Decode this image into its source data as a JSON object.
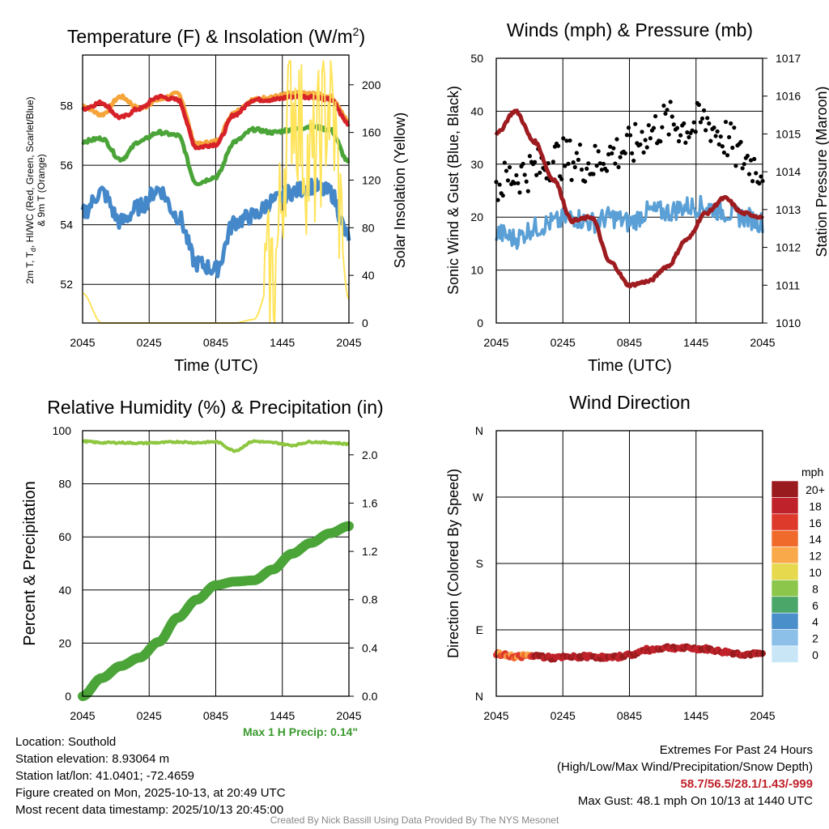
{
  "chart_data": [
    {
      "type": "line",
      "title": "Temperature (F) & Insolation (W/m2)",
      "title_main": "Temperature (F) & Insolation (W/m",
      "title_sup": "2",
      "title_end": ")",
      "ylabel_lines": [
        "2m T, T",
        "d",
        ", HI/WC (Red, Green, Scarlet/Blue)",
        "& 9m T (Orange)"
      ],
      "y2label": "Solar Insolation (Yellow)",
      "xlabel": "Time (UTC)",
      "xticks": [
        "2045",
        "0245",
        "0845",
        "1445",
        "2045"
      ],
      "yticks": [
        52,
        54,
        56,
        58
      ],
      "ylim": [
        50.7,
        59.7
      ],
      "y2ticks": [
        0,
        40,
        80,
        120,
        160,
        200
      ],
      "y2lim": [
        0,
        225
      ],
      "series": [
        {
          "name": "9m T",
          "color": "#f5a53a",
          "values": [
            58.0,
            57.7,
            58.3,
            57.9,
            58.2,
            58.4,
            56.7,
            56.8,
            57.8,
            58.2,
            58.3,
            58.4,
            58.4,
            58.3,
            57.5
          ]
        },
        {
          "name": "2m T",
          "color": "#d62228",
          "values": [
            57.9,
            58.1,
            57.6,
            57.9,
            58.3,
            58.2,
            56.6,
            56.7,
            57.7,
            58.2,
            58.2,
            58.3,
            58.3,
            58.2,
            57.4
          ]
        },
        {
          "name": "Td",
          "color": "#4aa438",
          "values": [
            56.8,
            56.9,
            56.2,
            56.8,
            57.1,
            57.0,
            55.4,
            55.6,
            56.8,
            57.2,
            57.1,
            57.2,
            57.3,
            57.2,
            56.1
          ]
        },
        {
          "name": "HI/WC",
          "color": "#4488c9",
          "values": [
            54.4,
            55.1,
            54.1,
            54.6,
            55.2,
            54.3,
            52.7,
            52.5,
            54.1,
            54.3,
            54.8,
            55.1,
            55.3,
            55.1,
            53.6
          ]
        },
        {
          "name": "Solar Insolation",
          "axis": "y2",
          "color": "#ffe45c",
          "values": [
            25,
            0,
            0,
            0,
            0,
            0,
            0,
            0,
            0,
            3,
            40,
            190,
            130,
            185,
            20
          ]
        }
      ]
    },
    {
      "type": "line",
      "title": "Winds (mph) & Pressure (mb)",
      "ylabel": "Sonic Wind & Gust (Blue, Black)",
      "y2label": "Station Pressure (Maroon)",
      "xlabel": "Time (UTC)",
      "xticks": [
        "2045",
        "0245",
        "0845",
        "1445",
        "2045"
      ],
      "yticks": [
        0,
        10,
        20,
        30,
        40,
        50
      ],
      "ylim": [
        0,
        50
      ],
      "y2ticks": [
        1010,
        1011,
        1012,
        1013,
        1014,
        1015,
        1016,
        1017
      ],
      "y2lim": [
        1010,
        1017
      ],
      "series": [
        {
          "name": "Sonic Wind",
          "color": "#5aa0d6",
          "values": [
            17,
            16,
            18,
            19,
            20,
            19,
            20,
            19,
            21,
            21,
            22,
            22,
            21,
            20,
            19
          ]
        },
        {
          "name": "Gust",
          "color": "#000000",
          "values": [
            26,
            28,
            29,
            31,
            31,
            30,
            32,
            33,
            36,
            38,
            37,
            38,
            35,
            31,
            29
          ]
        },
        {
          "name": "Station Pressure",
          "axis": "y2",
          "color": "#9e1b1f",
          "values": [
            1015.0,
            1015.6,
            1014.8,
            1013.8,
            1012.7,
            1012.8,
            1011.6,
            1011.0,
            1011.1,
            1011.5,
            1012.2,
            1012.9,
            1013.3,
            1012.9,
            1012.8
          ]
        }
      ]
    },
    {
      "type": "line",
      "title": "Relative Humidity (%) & Precipitation (in)",
      "ylabel": "Percent & Precipitation",
      "xticks": [
        "2045",
        "0245",
        "0845",
        "1445",
        "2045"
      ],
      "yticks": [
        0,
        20,
        40,
        60,
        80,
        100
      ],
      "ylim": [
        0,
        100
      ],
      "y2ticks": [
        "0.0",
        "0.4",
        "0.8",
        "1.2",
        "1.6",
        "2.0"
      ],
      "y2lim": [
        0,
        2.2
      ],
      "series": [
        {
          "name": "Relative Humidity",
          "color": "#8dc63f",
          "values": [
            96,
            95.5,
            95.5,
            95.3,
            95.5,
            95.8,
            95.5,
            95.8,
            92.5,
            96,
            95.5,
            94.5,
            95.8,
            95.5,
            95
          ]
        },
        {
          "name": "Precipitation",
          "axis": "y2",
          "color": "#4aa438",
          "values": [
            0.0,
            0.15,
            0.25,
            0.32,
            0.45,
            0.65,
            0.8,
            0.92,
            0.95,
            0.96,
            1.05,
            1.18,
            1.27,
            1.35,
            1.41
          ]
        }
      ],
      "annotation": "Max 1 H Precip: 0.14\""
    },
    {
      "type": "scatter",
      "title": "Wind Direction",
      "ylabel": "Direction (Colored By Speed)",
      "xticks": [
        "2045",
        "0245",
        "0845",
        "1445",
        "2045"
      ],
      "yticks": [
        "N",
        "E",
        "S",
        "W",
        "N"
      ],
      "ylim": [
        0,
        360
      ],
      "series": [
        {
          "name": "Wind Direction (deg)",
          "values": [
            57,
            54,
            55,
            52,
            53,
            54,
            52,
            56,
            63,
            66,
            65,
            64,
            60,
            57,
            57
          ]
        }
      ],
      "legend": {
        "title": "mph",
        "position": "right",
        "labels": [
          "20+",
          "18",
          "16",
          "14",
          "12",
          "10",
          "8",
          "6",
          "4",
          "2",
          "0"
        ],
        "colors": [
          "#9a1b1e",
          "#c0222b",
          "#dd3a2c",
          "#f06a2c",
          "#f9a84a",
          "#e6d94e",
          "#8cc64a",
          "#4ba66a",
          "#4a8fca",
          "#8cc0e8",
          "#c9e6f7"
        ]
      }
    }
  ],
  "info": {
    "location": "Location: Southold",
    "elevation": "Station elevation: 8.93064 m",
    "latlon": "Station lat/lon: 41.0401; -72.4659",
    "created": "Figure created on Mon, 2025-10-13, at 20:49 UTC",
    "recent": "Most recent data timestamp: 2025/10/13 20:45:00"
  },
  "extremes": {
    "line1": "Extremes For Past 24 Hours",
    "line2": "(High/Low/Max Wind/Precipitation/Snow Depth)",
    "values": "58.7/56.5/28.1/1.43/-999",
    "max_gust": "Max Gust: 48.1 mph On 10/13 at 1440 UTC"
  },
  "credit": "Created By Nick Bassill Using Data Provided By The NYS Mesonet"
}
